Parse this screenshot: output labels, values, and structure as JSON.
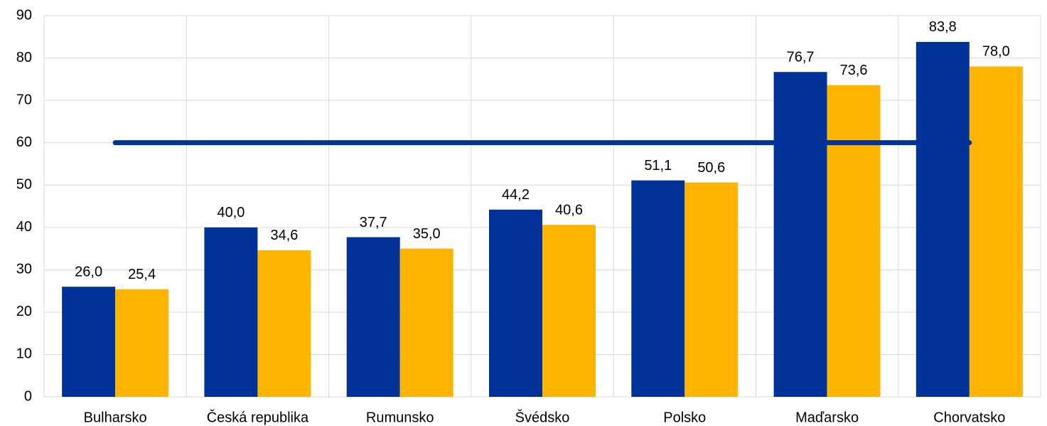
{
  "chart_data": {
    "type": "bar",
    "categories": [
      "Bulharsko",
      "Česká republika",
      "Rumunsko",
      "Švédsko",
      "Polsko",
      "Maďarsko",
      "Chorvatsko"
    ],
    "series": [
      {
        "color": "#003399",
        "values": [
          26.0,
          40.0,
          37.7,
          44.2,
          51.1,
          76.7,
          83.8
        ],
        "value_labels": [
          "26,0",
          "40,0",
          "37,7",
          "44,2",
          "51,1",
          "76,7",
          "83,8"
        ]
      },
      {
        "color": "#ffb400",
        "values": [
          25.4,
          34.6,
          35.0,
          40.6,
          50.6,
          73.6,
          78.0
        ],
        "value_labels": [
          "25,4",
          "34,6",
          "35,0",
          "40,6",
          "50,6",
          "73,6",
          "78,0"
        ]
      },
      {
        "type": "line",
        "color": "#003399",
        "values": [
          60,
          60,
          60,
          60,
          60,
          60,
          60
        ]
      }
    ],
    "ylim": [
      0,
      90
    ],
    "yticks": [
      0,
      10,
      20,
      30,
      40,
      50,
      60,
      70,
      80,
      90
    ],
    "grid": true
  }
}
